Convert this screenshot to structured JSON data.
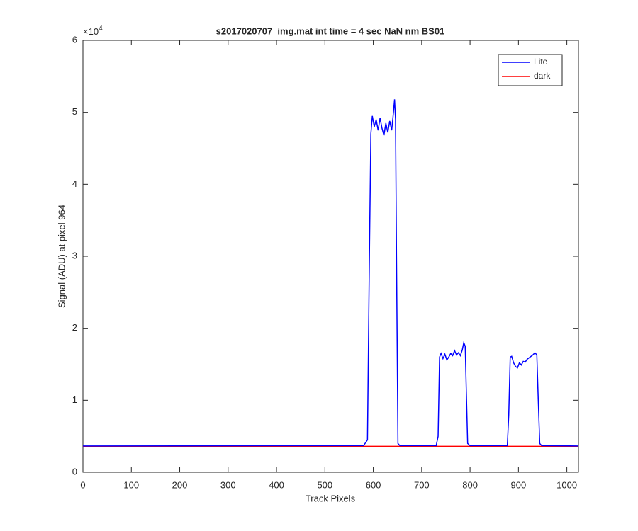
{
  "chart_data": {
    "type": "line",
    "title": "s2017020707_img.mat int time = 4 sec  NaN nm BS01",
    "x_label": "Track Pixels",
    "y_label": "Signal (ADU) at pixel 964",
    "y_multiplier": {
      "base": "×10",
      "exponent": "4"
    },
    "xlim": [
      0,
      1024
    ],
    "xticks": [
      0,
      100,
      200,
      300,
      400,
      500,
      600,
      700,
      800,
      900,
      1000
    ],
    "ylim": [
      0,
      60000
    ],
    "yticks": [
      0,
      {
        "value": 10000,
        "label": "1"
      },
      {
        "value": 20000,
        "label": "2"
      },
      {
        "value": 30000,
        "label": "3"
      },
      {
        "value": 40000,
        "label": "4"
      },
      {
        "value": 50000,
        "label": "5"
      },
      {
        "value": 60000,
        "label": "6"
      }
    ],
    "grid": false,
    "legend": "top-right",
    "series": [
      {
        "name": "Lite",
        "color": "#0000ff",
        "x": [
          0,
          580,
          588,
          592,
          595,
          598,
          602,
          606,
          610,
          614,
          618,
          622,
          626,
          630,
          634,
          638,
          641,
          644,
          646,
          648,
          651,
          655,
          730,
          734,
          737,
          740,
          744,
          748,
          752,
          756,
          760,
          764,
          768,
          772,
          776,
          780,
          784,
          787,
          790,
          792,
          795,
          800,
          877,
          880,
          883,
          886,
          890,
          894,
          898,
          902,
          906,
          910,
          914,
          918,
          922,
          926,
          930,
          934,
          938,
          941,
          944,
          948,
          1024
        ],
        "values": [
          3650,
          3700,
          4500,
          30000,
          47000,
          49500,
          48000,
          49000,
          47500,
          49200,
          47800,
          46800,
          48500,
          47200,
          48800,
          47500,
          49500,
          51800,
          49000,
          30000,
          4000,
          3700,
          3700,
          5000,
          16000,
          16500,
          15800,
          16400,
          15600,
          16000,
          16500,
          16200,
          16900,
          16300,
          16600,
          16200,
          17000,
          18000,
          17500,
          12000,
          4000,
          3700,
          3700,
          8000,
          16000,
          16100,
          15200,
          14700,
          14500,
          15200,
          14900,
          15400,
          15300,
          15700,
          15900,
          16100,
          16300,
          16600,
          16300,
          10000,
          4000,
          3700,
          3650
        ]
      },
      {
        "name": "dark",
        "color": "#ff0000",
        "x": [
          0,
          256,
          512,
          768,
          1024
        ],
        "values": [
          3600,
          3600,
          3600,
          3600,
          3600
        ]
      }
    ]
  }
}
